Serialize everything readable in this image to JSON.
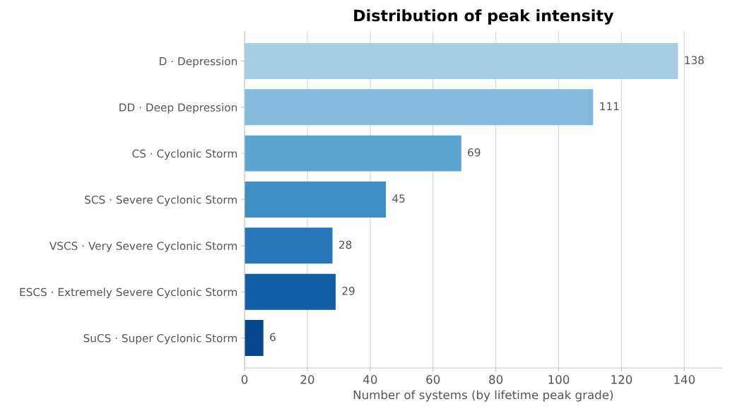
{
  "chart_data": {
    "type": "bar",
    "orientation": "horizontal",
    "title": "Distribution of peak intensity",
    "xlabel": "Number of systems (by lifetime peak grade)",
    "categories": [
      "D · Depression",
      "DD · Deep Depression",
      "CS · Cyclonic Storm",
      "SCS · Severe Cyclonic Storm",
      "VSCS · Very Severe Cyclonic Storm",
      "ESCS · Extremely Severe Cyclonic Storm",
      "SuCS · Super Cyclonic Storm"
    ],
    "values": [
      138,
      111,
      69,
      45,
      28,
      29,
      6
    ],
    "colors": [
      "#a6cee4",
      "#84bade",
      "#5ca5d1",
      "#3f8fc5",
      "#2777b8",
      "#125ea6",
      "#08468b"
    ],
    "xlim": [
      0,
      152
    ],
    "xticks": [
      0,
      20,
      40,
      60,
      80,
      100,
      120,
      140
    ],
    "grid": "x",
    "data_labels": true
  }
}
